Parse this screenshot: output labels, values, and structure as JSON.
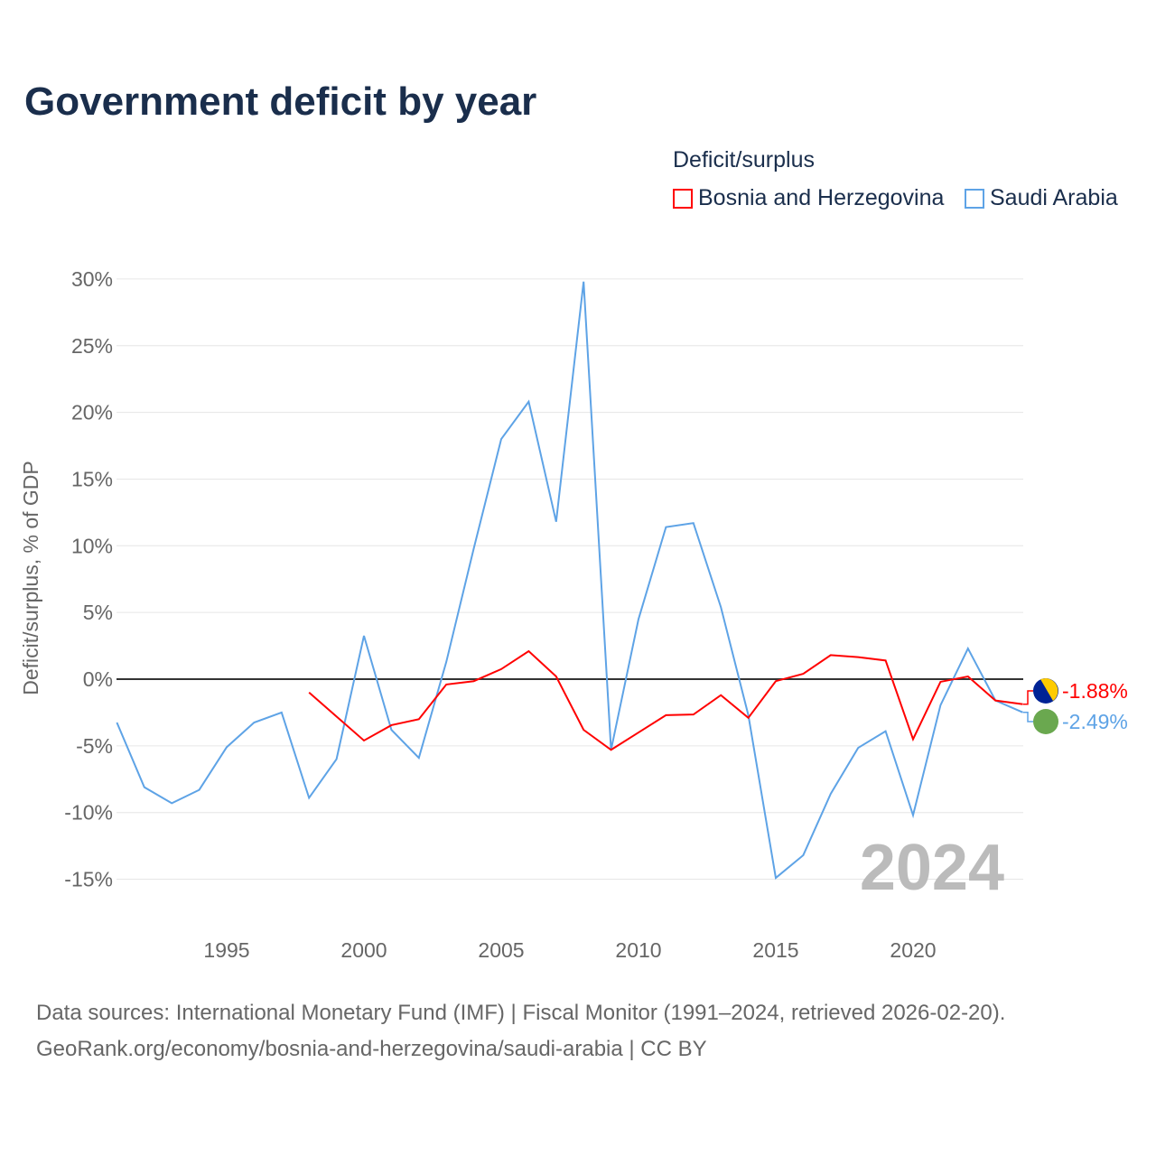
{
  "chart_data": {
    "type": "line",
    "title": "Government deficit by year",
    "legend_title": "Deficit/surplus",
    "ylabel": "Deficit/surplus, % of GDP",
    "xlabel": "",
    "ylim": [
      -15,
      30
    ],
    "xlim": [
      1991,
      2024
    ],
    "yticks": [
      -15,
      -10,
      -5,
      0,
      5,
      10,
      15,
      20,
      25,
      30
    ],
    "ytick_labels": [
      "-15%",
      "-10%",
      "-5%",
      "0%",
      "5%",
      "10%",
      "15%",
      "20%",
      "25%",
      "30%"
    ],
    "xticks": [
      1995,
      2000,
      2005,
      2010,
      2015,
      2020
    ],
    "xtick_labels": [
      "1995",
      "2000",
      "2005",
      "2010",
      "2015",
      "2020"
    ],
    "year_label": "2024",
    "series": [
      {
        "name": "Bosnia and Herzegovina",
        "color": "#ff0000",
        "end_label": "-1.88%",
        "x_start": 1998,
        "values": [
          -1.0,
          -2.8,
          -4.6,
          -3.45,
          -3.0,
          -0.4,
          -0.15,
          0.75,
          2.1,
          0.2,
          -3.8,
          -5.3,
          -4.0,
          -2.7,
          -2.65,
          -1.2,
          -2.9,
          -0.15,
          0.4,
          1.8,
          1.65,
          1.4,
          -4.5,
          -0.2,
          0.2,
          -1.6,
          -1.88
        ]
      },
      {
        "name": "Saudi Arabia",
        "color": "#5ea3e6",
        "end_label": "-2.49%",
        "x_start": 1991,
        "values": [
          -3.25,
          -8.1,
          -9.3,
          -8.3,
          -5.1,
          -3.25,
          -2.5,
          -8.9,
          -6.0,
          3.25,
          -3.8,
          -5.9,
          1.3,
          9.8,
          18.0,
          20.8,
          11.8,
          29.8,
          -5.3,
          4.5,
          11.4,
          11.7,
          5.4,
          -2.7,
          -14.9,
          -13.2,
          -8.6,
          -5.15,
          -3.9,
          -10.2,
          -1.95,
          2.3,
          -1.6,
          -2.49
        ]
      }
    ]
  },
  "footer": {
    "line1": "Data sources: International Monetary Fund (IMF) | Fiscal Monitor (1991–2024, retrieved 2026-02-20).",
    "line2": "GeoRank.org/economy/bosnia-and-herzegovina/saudi-arabia | CC BY"
  }
}
